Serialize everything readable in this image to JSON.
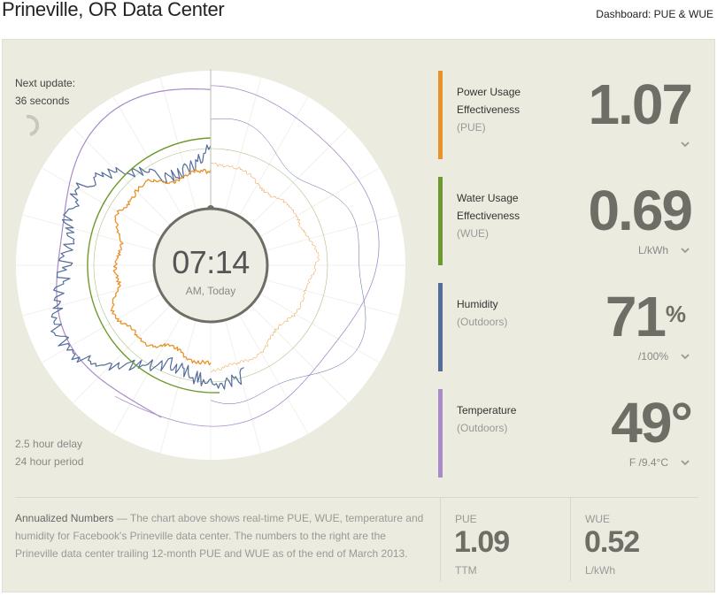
{
  "header": {
    "title": "Prineville, OR Data Center",
    "dashboard_link": "Dashboard: PUE & WUE"
  },
  "gauge": {
    "next_update_label": "Next update:",
    "next_update_value": "36 seconds",
    "time": "07:14",
    "time_sub": "AM, Today",
    "delay": "2.5 hour delay",
    "period": "24 hour period",
    "colors": {
      "pue": "#e8922a",
      "wue": "#6d9a2e",
      "humidity": "#536c9a",
      "temperature": "#a88bc8"
    }
  },
  "metrics": [
    {
      "name1": "Power Usage",
      "name2": "Effectiveness",
      "sub": "(PUE)",
      "value": "1.07",
      "unit": "",
      "sup": "",
      "color": "#e8922a",
      "icon": "chevron-down-icon"
    },
    {
      "name1": "Water Usage",
      "name2": "Effectiveness",
      "sub": "(WUE)",
      "value": "0.69",
      "unit": "L/kWh",
      "sup": "",
      "color": "#6d9a2e",
      "icon": "chevron-down-icon"
    },
    {
      "name1": "Humidity",
      "name2": "",
      "sub": "(Outdoors)",
      "value": "71",
      "unit": "/100%",
      "sup": "%",
      "color": "#536c9a",
      "icon": "chevron-down-icon"
    },
    {
      "name1": "Temperature",
      "name2": "",
      "sub": "(Outdoors)",
      "value": "49°",
      "unit": "F /9.4°C",
      "sup": "",
      "color": "#a88bc8",
      "icon": "chevron-down-icon"
    }
  ],
  "annualized": {
    "lead": "Annualized Numbers",
    "text": " — The chart above shows real-time PUE, WUE, temperature and humidity for Facebook's Prineville data center. The numbers to the right are the Prineville data center trailing 12-month PUE and WUE as of the end of March 2013."
  },
  "ttm": [
    {
      "label": "PUE",
      "value": "1.09",
      "unit": "TTM"
    },
    {
      "label": "WUE",
      "value": "0.52",
      "unit": "L/kWh"
    }
  ]
}
